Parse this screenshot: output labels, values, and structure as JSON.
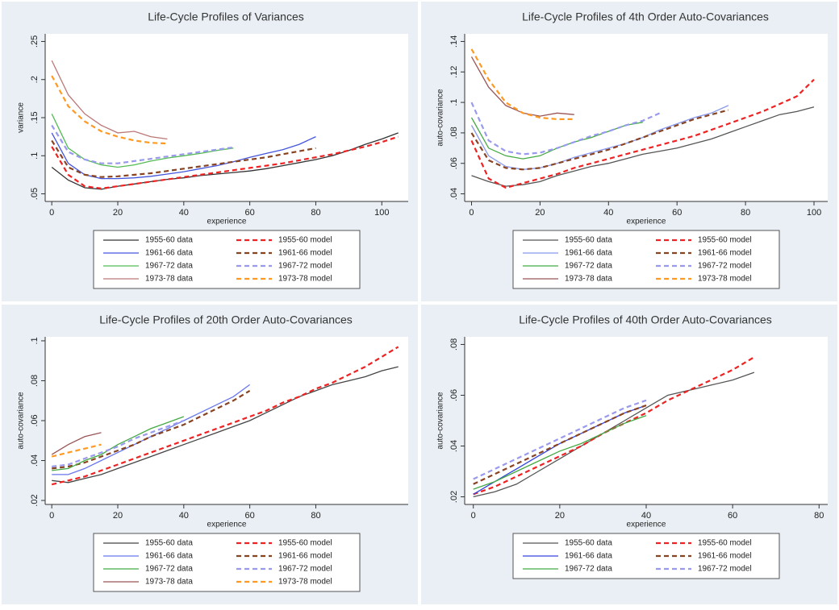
{
  "chart_data": [
    {
      "type": "line",
      "title": "Life-Cycle Profiles of Variances",
      "x_label": "experience",
      "y_label": "variance",
      "legend": "bottom",
      "xlim": [
        -2,
        108
      ],
      "ylim": [
        0.04,
        0.26
      ],
      "xticks": [
        0,
        20,
        40,
        60,
        80,
        100
      ],
      "yticks": [
        {
          "value": 0.05,
          "label": ".05"
        },
        {
          "value": 0.1,
          "label": ".1"
        },
        {
          "value": 0.15,
          "label": ".15"
        },
        {
          "value": 0.2,
          "label": ".2"
        },
        {
          "value": 0.25,
          "label": ".25"
        }
      ],
      "x": [
        0,
        5,
        10,
        15,
        20,
        25,
        30,
        35,
        40,
        45,
        50,
        55,
        60,
        65,
        70,
        75,
        80,
        85,
        90,
        95,
        100,
        105
      ],
      "series": [
        {
          "name": "1955-60 data",
          "color": "#333333",
          "dash": "solid",
          "values": [
            0.085,
            0.068,
            0.058,
            0.056,
            0.06,
            0.063,
            0.066,
            0.069,
            0.071,
            0.074,
            0.076,
            0.078,
            0.08,
            0.083,
            0.087,
            0.091,
            0.095,
            0.1,
            0.107,
            0.115,
            0.122,
            0.13
          ]
        },
        {
          "name": "1955-60 model",
          "color": "#ee2222",
          "dash": "dashed",
          "values": [
            0.112,
            0.075,
            0.06,
            0.057,
            0.06,
            0.063,
            0.066,
            0.069,
            0.072,
            0.075,
            0.078,
            0.081,
            0.084,
            0.087,
            0.09,
            0.094,
            0.098,
            0.102,
            0.107,
            0.112,
            0.118,
            0.125
          ]
        },
        {
          "name": "1961-66 data",
          "color": "#4455dd",
          "dash": "solid",
          "values": [
            0.13,
            0.09,
            0.075,
            0.07,
            0.07,
            0.071,
            0.073,
            0.076,
            0.079,
            0.083,
            0.087,
            0.092,
            0.098,
            0.103,
            0.108,
            0.115,
            0.125,
            null,
            null,
            null,
            null,
            null
          ]
        },
        {
          "name": "1961-66 model",
          "color": "#884422",
          "dash": "dashed",
          "values": [
            0.12,
            0.085,
            0.075,
            0.072,
            0.073,
            0.075,
            0.077,
            0.08,
            0.083,
            0.086,
            0.089,
            0.092,
            0.095,
            0.098,
            0.102,
            0.106,
            0.11,
            null,
            null,
            null,
            null,
            null
          ]
        },
        {
          "name": "1967-72 data",
          "color": "#55bb55",
          "dash": "solid",
          "values": [
            0.155,
            0.11,
            0.095,
            0.088,
            0.085,
            0.088,
            0.093,
            0.097,
            0.1,
            0.103,
            0.107,
            0.11,
            null,
            null,
            null,
            null,
            null,
            null,
            null,
            null,
            null,
            null
          ]
        },
        {
          "name": "1967-72 model",
          "color": "#9999ee",
          "dash": "dashed",
          "values": [
            0.14,
            0.105,
            0.095,
            0.09,
            0.09,
            0.093,
            0.096,
            0.099,
            0.102,
            0.105,
            0.108,
            0.111,
            null,
            null,
            null,
            null,
            null,
            null,
            null,
            null,
            null,
            null
          ]
        },
        {
          "name": "1973-78 data",
          "color": "#bb7777",
          "dash": "solid",
          "values": [
            0.225,
            0.18,
            0.155,
            0.14,
            0.13,
            0.132,
            0.125,
            0.122,
            null,
            null,
            null,
            null,
            null,
            null,
            null,
            null,
            null,
            null,
            null,
            null,
            null,
            null
          ]
        },
        {
          "name": "1973-78 model",
          "color": "#ff9922",
          "dash": "dashed",
          "values": [
            0.205,
            0.165,
            0.145,
            0.132,
            0.125,
            0.12,
            0.117,
            0.116,
            null,
            null,
            null,
            null,
            null,
            null,
            null,
            null,
            null,
            null,
            null,
            null,
            null,
            null
          ]
        }
      ]
    },
    {
      "type": "line",
      "title": "Life-Cycle Profiles of 4th Order Auto-Covariances",
      "x_label": "experience",
      "y_label": "auto-covariance",
      "legend": "bottom",
      "xlim": [
        -2,
        104
      ],
      "ylim": [
        0.035,
        0.145
      ],
      "xticks": [
        0,
        20,
        40,
        60,
        80,
        100
      ],
      "yticks": [
        {
          "value": 0.04,
          "label": ".04"
        },
        {
          "value": 0.06,
          "label": ".06"
        },
        {
          "value": 0.08,
          "label": ".08"
        },
        {
          "value": 0.1,
          "label": ".1"
        },
        {
          "value": 0.12,
          "label": ".12"
        },
        {
          "value": 0.14,
          "label": ".14"
        }
      ],
      "x": [
        0,
        5,
        10,
        15,
        20,
        25,
        30,
        35,
        40,
        45,
        50,
        55,
        60,
        65,
        70,
        75,
        80,
        85,
        90,
        95,
        100
      ],
      "series": [
        {
          "name": "1955-60 data",
          "color": "#555555",
          "dash": "solid",
          "values": [
            0.052,
            0.048,
            0.045,
            0.046,
            0.048,
            0.052,
            0.055,
            0.058,
            0.06,
            0.063,
            0.066,
            0.068,
            0.07,
            0.073,
            0.076,
            0.08,
            0.084,
            0.088,
            0.092,
            0.094,
            0.097
          ]
        },
        {
          "name": "1955-60 model",
          "color": "#ee2222",
          "dash": "dashed",
          "values": [
            0.075,
            0.05,
            0.044,
            0.047,
            0.05,
            0.053,
            0.057,
            0.06,
            0.063,
            0.066,
            0.069,
            0.072,
            0.075,
            0.078,
            0.082,
            0.086,
            0.09,
            0.094,
            0.099,
            0.104,
            0.115
          ]
        },
        {
          "name": "1961-66 data",
          "color": "#8899ee",
          "dash": "solid",
          "values": [
            0.085,
            0.065,
            0.058,
            0.056,
            0.057,
            0.06,
            0.064,
            0.067,
            0.07,
            0.073,
            0.077,
            0.082,
            0.086,
            0.09,
            0.093,
            0.098,
            null,
            null,
            null,
            null,
            null
          ]
        },
        {
          "name": "1961-66 model",
          "color": "#884422",
          "dash": "dashed",
          "values": [
            0.08,
            0.062,
            0.057,
            0.056,
            0.057,
            0.06,
            0.063,
            0.066,
            0.069,
            0.073,
            0.077,
            0.081,
            0.085,
            0.089,
            0.092,
            0.095,
            null,
            null,
            null,
            null,
            null
          ]
        },
        {
          "name": "1967-72 data",
          "color": "#44aa44",
          "dash": "solid",
          "values": [
            0.09,
            0.07,
            0.065,
            0.063,
            0.065,
            0.07,
            0.074,
            0.077,
            0.081,
            0.085,
            0.087,
            null,
            null,
            null,
            null,
            null,
            null,
            null,
            null,
            null,
            null
          ]
        },
        {
          "name": "1967-72 model",
          "color": "#9999ee",
          "dash": "dashed",
          "values": [
            0.1,
            0.075,
            0.068,
            0.066,
            0.067,
            0.07,
            0.074,
            0.078,
            0.081,
            0.085,
            0.088,
            0.093,
            null,
            null,
            null,
            null,
            null,
            null,
            null,
            null,
            null
          ]
        },
        {
          "name": "1973-78 data",
          "color": "#995555",
          "dash": "solid",
          "values": [
            0.13,
            0.11,
            0.098,
            0.093,
            0.091,
            0.093,
            0.092,
            null,
            null,
            null,
            null,
            null,
            null,
            null,
            null,
            null,
            null,
            null,
            null,
            null,
            null
          ]
        },
        {
          "name": "1973-78 model",
          "color": "#ff9922",
          "dash": "dashed",
          "values": [
            0.135,
            0.115,
            0.1,
            0.093,
            0.09,
            0.089,
            0.089,
            null,
            null,
            null,
            null,
            null,
            null,
            null,
            null,
            null,
            null,
            null,
            null,
            null,
            null
          ]
        }
      ]
    },
    {
      "type": "line",
      "title": "Life-Cycle Profiles of 20th Order Auto-Covariances",
      "x_label": "experience",
      "y_label": "auto-covariance",
      "legend": "bottom",
      "xlim": [
        -2,
        108
      ],
      "ylim": [
        0.018,
        0.102
      ],
      "xticks": [
        0,
        20,
        40,
        60,
        80
      ],
      "yticks": [
        {
          "value": 0.02,
          "label": ".02"
        },
        {
          "value": 0.04,
          "label": ".04"
        },
        {
          "value": 0.06,
          "label": ".06"
        },
        {
          "value": 0.08,
          "label": ".08"
        },
        {
          "value": 0.1,
          "label": ".1"
        }
      ],
      "x": [
        0,
        5,
        10,
        15,
        20,
        25,
        30,
        35,
        40,
        45,
        50,
        55,
        60,
        65,
        70,
        75,
        80,
        85,
        90,
        95,
        100,
        105
      ],
      "series": [
        {
          "name": "1955-60 data",
          "color": "#444444",
          "dash": "solid",
          "values": [
            0.03,
            0.029,
            0.031,
            0.033,
            0.036,
            0.039,
            0.042,
            0.045,
            0.048,
            0.051,
            0.054,
            0.057,
            0.06,
            0.064,
            0.068,
            0.072,
            0.075,
            0.078,
            0.08,
            0.082,
            0.085,
            0.087
          ]
        },
        {
          "name": "1955-60 model",
          "color": "#ee2222",
          "dash": "dashed",
          "values": [
            0.028,
            0.03,
            0.032,
            0.035,
            0.038,
            0.041,
            0.044,
            0.047,
            0.05,
            0.053,
            0.056,
            0.059,
            0.062,
            0.065,
            0.069,
            0.072,
            0.076,
            0.079,
            0.083,
            0.087,
            0.092,
            0.097
          ]
        },
        {
          "name": "1961-66 data",
          "color": "#6677ee",
          "dash": "solid",
          "values": [
            0.033,
            0.033,
            0.036,
            0.04,
            0.044,
            0.048,
            0.052,
            0.056,
            0.06,
            0.064,
            0.068,
            0.072,
            0.078,
            null,
            null,
            null,
            null,
            null,
            null,
            null,
            null,
            null
          ]
        },
        {
          "name": "1961-66 model",
          "color": "#884422",
          "dash": "dashed",
          "values": [
            0.036,
            0.037,
            0.039,
            0.042,
            0.045,
            0.048,
            0.052,
            0.055,
            0.058,
            0.062,
            0.066,
            0.07,
            0.075,
            null,
            null,
            null,
            null,
            null,
            null,
            null,
            null,
            null
          ]
        },
        {
          "name": "1967-72 data",
          "color": "#44aa44",
          "dash": "solid",
          "values": [
            0.035,
            0.036,
            0.04,
            0.043,
            0.048,
            0.052,
            0.056,
            0.059,
            0.062,
            null,
            null,
            null,
            null,
            null,
            null,
            null,
            null,
            null,
            null,
            null,
            null,
            null
          ]
        },
        {
          "name": "1967-72 model",
          "color": "#9999ee",
          "dash": "dashed",
          "values": [
            0.037,
            0.038,
            0.041,
            0.044,
            0.047,
            0.051,
            0.054,
            0.057,
            0.06,
            null,
            null,
            null,
            null,
            null,
            null,
            null,
            null,
            null,
            null,
            null,
            null,
            null
          ]
        },
        {
          "name": "1973-78 data",
          "color": "#995555",
          "dash": "solid",
          "values": [
            0.043,
            0.048,
            0.052,
            0.054,
            null,
            null,
            null,
            null,
            null,
            null,
            null,
            null,
            null,
            null,
            null,
            null,
            null,
            null,
            null,
            null,
            null,
            null
          ]
        },
        {
          "name": "1973-78 model",
          "color": "#ff9922",
          "dash": "dashed",
          "values": [
            0.042,
            0.044,
            0.046,
            0.048,
            null,
            null,
            null,
            null,
            null,
            null,
            null,
            null,
            null,
            null,
            null,
            null,
            null,
            null,
            null,
            null,
            null,
            null
          ]
        }
      ]
    },
    {
      "type": "line",
      "title": "Life-Cycle Profiles of 40th Order Auto-Covariances",
      "x_label": "experience",
      "y_label": "auto-covariance",
      "legend": "bottom",
      "xlim": [
        -2,
        82
      ],
      "ylim": [
        0.017,
        0.083
      ],
      "xticks": [
        0,
        20,
        40,
        60,
        80
      ],
      "yticks": [
        {
          "value": 0.02,
          "label": ".02"
        },
        {
          "value": 0.04,
          "label": ".04"
        },
        {
          "value": 0.06,
          "label": ".06"
        },
        {
          "value": 0.08,
          "label": ".08"
        }
      ],
      "x": [
        0,
        5,
        10,
        15,
        20,
        25,
        30,
        35,
        40,
        45,
        50,
        55,
        60,
        65
      ],
      "series": [
        {
          "name": "1955-60 data",
          "color": "#555555",
          "dash": "solid",
          "values": [
            0.02,
            0.022,
            0.025,
            0.03,
            0.035,
            0.04,
            0.045,
            0.05,
            0.055,
            0.06,
            0.062,
            0.064,
            0.066,
            0.069
          ]
        },
        {
          "name": "1955-60 model",
          "color": "#ee2222",
          "dash": "dashed",
          "values": [
            0.021,
            0.024,
            0.028,
            0.032,
            0.036,
            0.04,
            0.045,
            0.049,
            0.053,
            0.058,
            0.062,
            0.066,
            0.07,
            0.075
          ]
        },
        {
          "name": "1961-66 data",
          "color": "#3344dd",
          "dash": "solid",
          "values": [
            0.021,
            0.026,
            0.031,
            0.036,
            0.041,
            0.045,
            0.049,
            0.053,
            0.056,
            null,
            null,
            null,
            null,
            null
          ]
        },
        {
          "name": "1961-66 model",
          "color": "#884422",
          "dash": "dashed",
          "values": [
            0.025,
            0.029,
            0.033,
            0.037,
            0.041,
            0.045,
            0.049,
            0.053,
            0.056,
            null,
            null,
            null,
            null,
            null
          ]
        },
        {
          "name": "1967-72 data",
          "color": "#44aa44",
          "dash": "solid",
          "values": [
            0.023,
            0.026,
            0.03,
            0.034,
            0.038,
            0.041,
            0.045,
            0.049,
            0.052,
            null,
            null,
            null,
            null,
            null
          ]
        },
        {
          "name": "1967-72 model",
          "color": "#9999ee",
          "dash": "dashed",
          "values": [
            0.027,
            0.031,
            0.035,
            0.039,
            0.043,
            0.047,
            0.051,
            0.055,
            0.058,
            null,
            null,
            null,
            null,
            null
          ]
        }
      ]
    }
  ]
}
